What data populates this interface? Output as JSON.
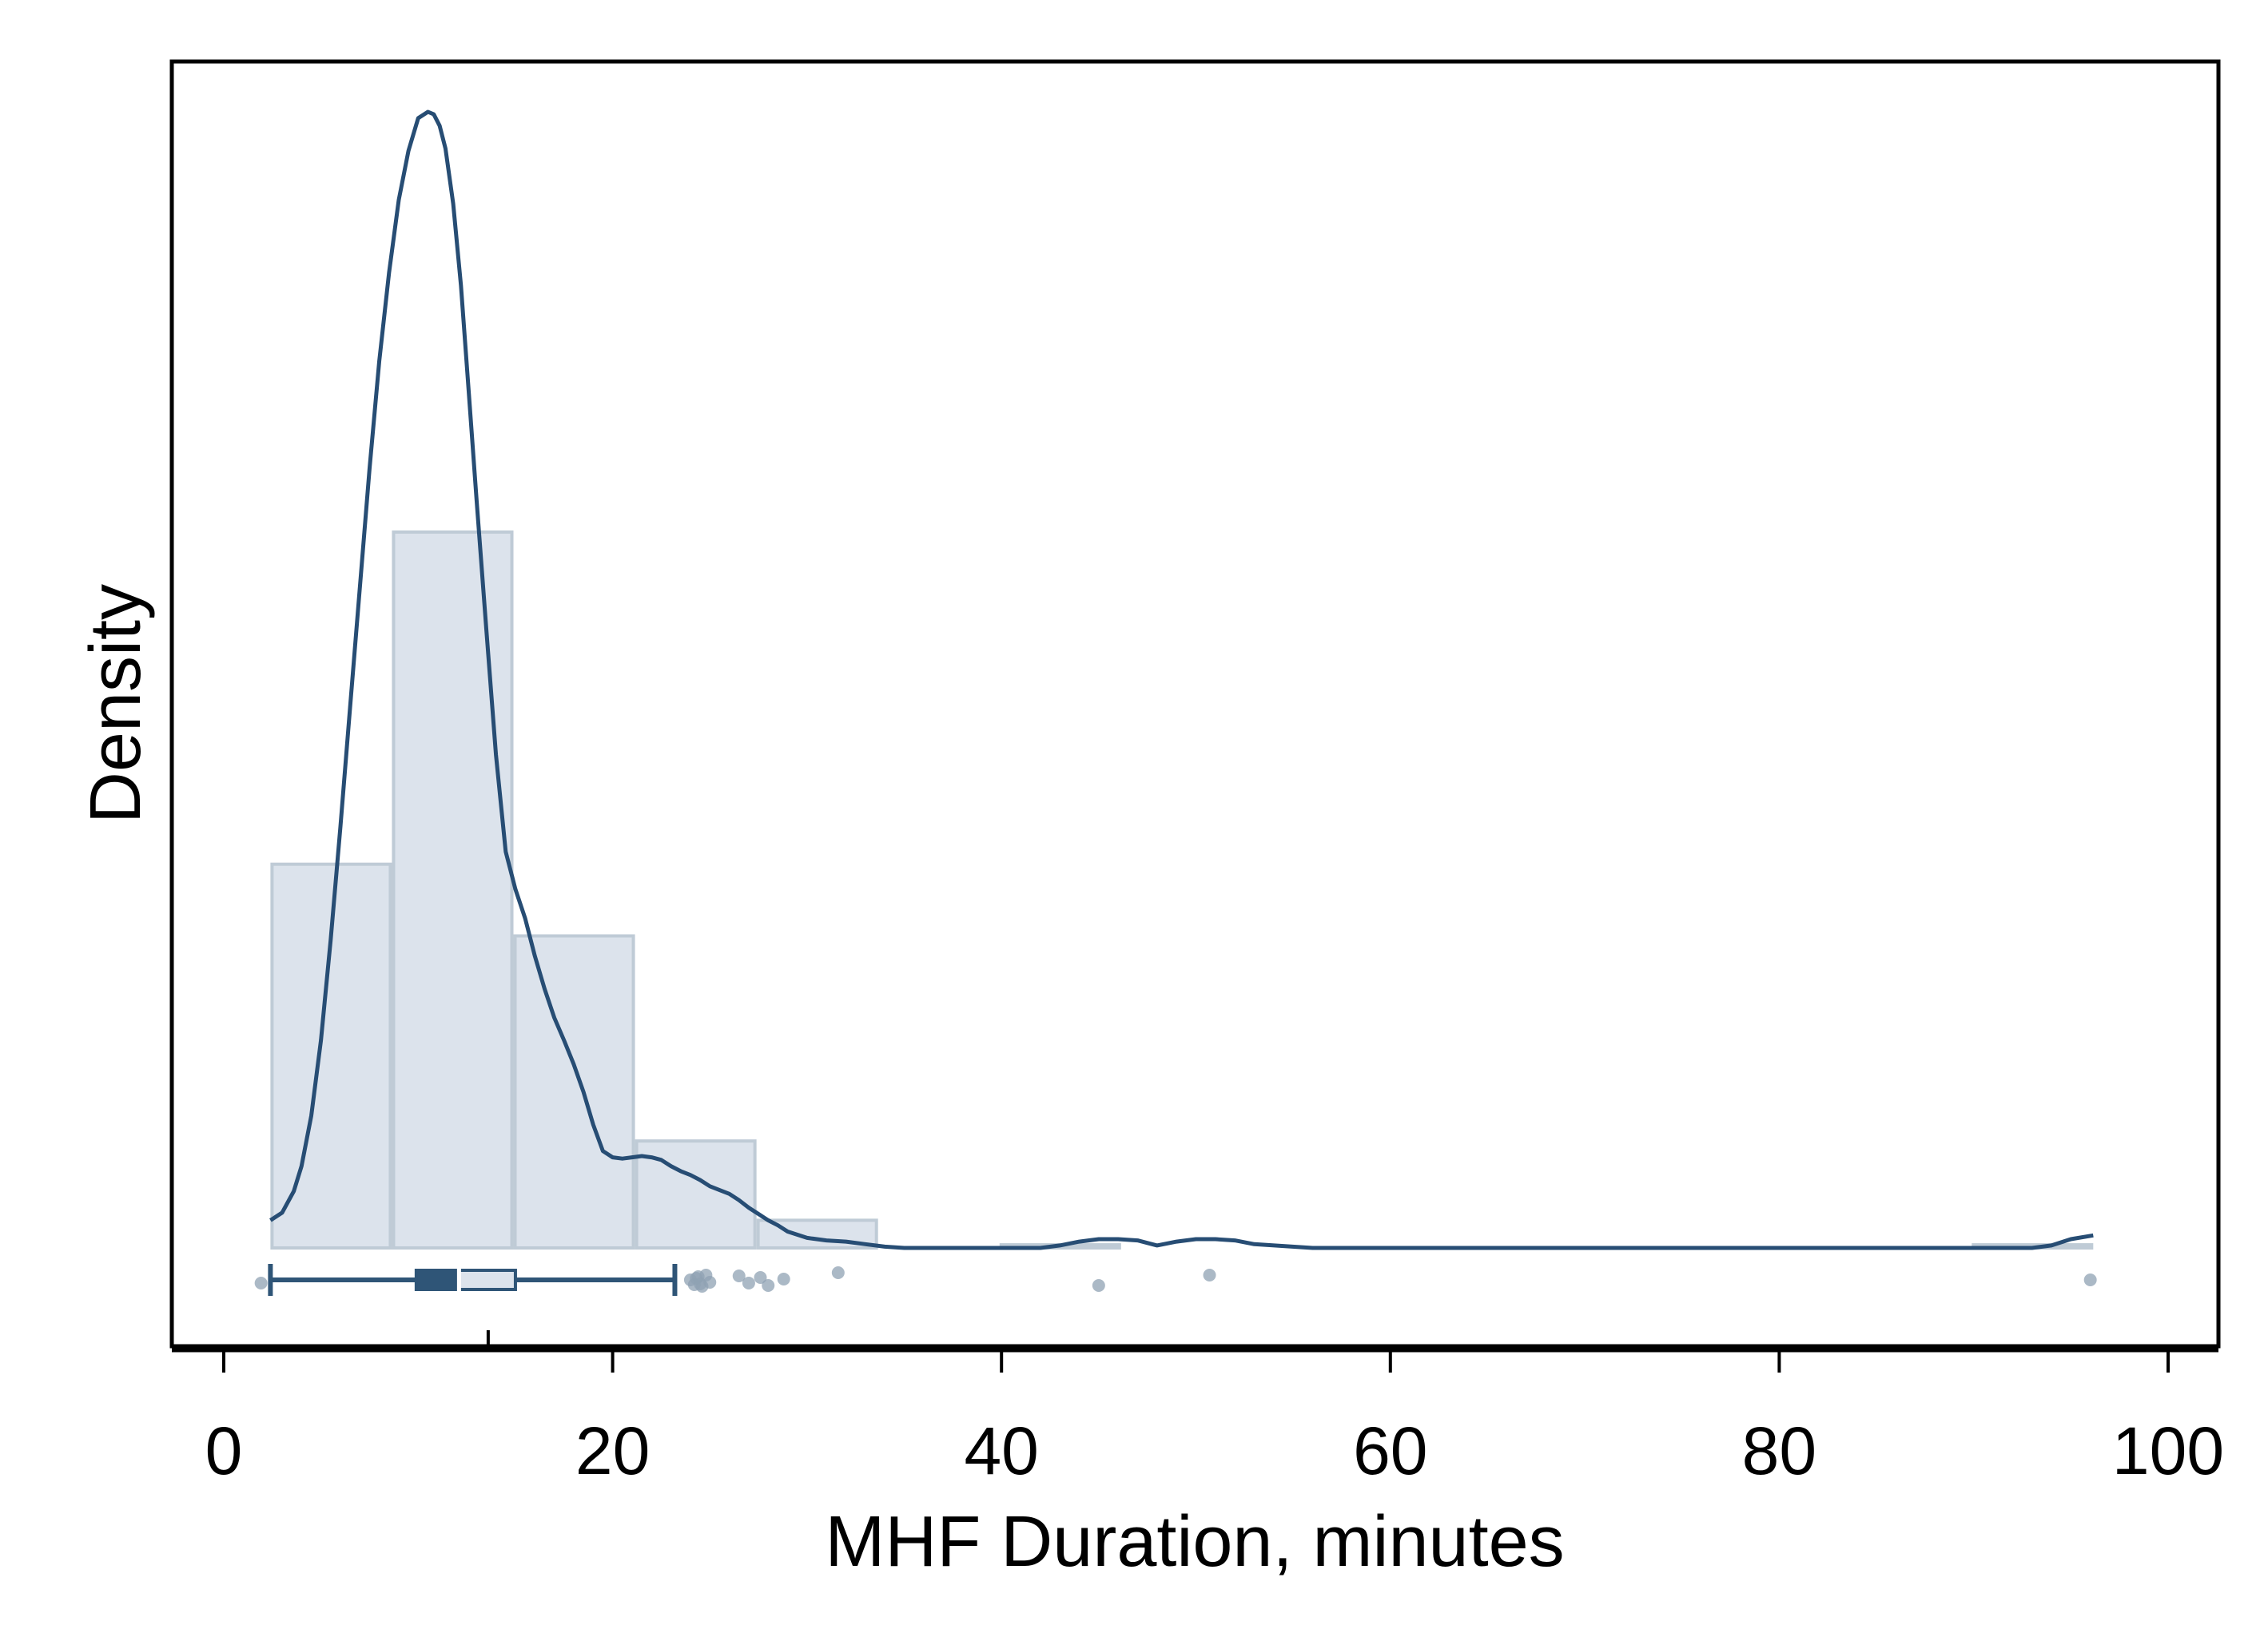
{
  "chart_data": {
    "type": "histogram",
    "title": "",
    "xlabel": "MHF Duration, minutes",
    "ylabel": "Density",
    "xlim": [
      -2.5,
      102.5
    ],
    "xticks": [
      0,
      20,
      40,
      60,
      80,
      100
    ],
    "xtick_labels": [
      "0",
      "20",
      "40",
      "60",
      "80",
      "100"
    ],
    "yticks_shown": false,
    "grid": false,
    "legend": "none",
    "histogram": {
      "bin_edges": [
        2.4,
        8.65,
        14.9,
        21.15,
        27.4,
        33.65,
        39.9,
        46.15,
        52.4,
        58.65,
        64.9,
        71.15,
        77.4,
        83.65,
        89.9,
        96.15
      ],
      "densities": [
        0.0305,
        0.0569,
        0.0248,
        0.0085,
        0.0022,
        0.0,
        0.00025,
        0.0,
        0.0,
        0.0,
        0.0,
        0.0,
        0.0,
        0.0,
        0.00025
      ]
    },
    "kde": {
      "x": [
        2.4,
        3.0,
        3.6,
        4.0,
        4.5,
        5.0,
        5.5,
        6.0,
        6.5,
        7.0,
        7.5,
        8.0,
        8.5,
        9.0,
        9.5,
        10.0,
        10.5,
        10.8,
        11.1,
        11.4,
        11.8,
        12.2,
        12.6,
        13.0,
        13.5,
        14.0,
        14.5,
        15.0,
        15.5,
        16.0,
        16.5,
        17.0,
        17.5,
        18.0,
        18.5,
        19.0,
        19.5,
        20.0,
        20.5,
        21.0,
        21.5,
        22.0,
        22.5,
        23.0,
        23.5,
        24.0,
        24.5,
        25.0,
        25.5,
        26.0,
        26.5,
        27.0,
        27.5,
        28.0,
        28.5,
        29.0,
        30.0,
        31.0,
        32.0,
        33.0,
        34.0,
        35.0,
        38.0,
        42.0,
        43.0,
        44.0,
        45.0,
        46.0,
        47.0,
        48.0,
        49.0,
        50.0,
        51.0,
        52.0,
        53.0,
        56.0,
        70.0,
        85.0,
        93.0,
        94.0,
        95.0,
        96.15
      ],
      "y": [
        0.0022,
        0.0028,
        0.0045,
        0.0065,
        0.0105,
        0.0165,
        0.0245,
        0.0335,
        0.043,
        0.0525,
        0.062,
        0.0705,
        0.0775,
        0.0833,
        0.0872,
        0.0898,
        0.0903,
        0.0901,
        0.0892,
        0.0874,
        0.083,
        0.0765,
        0.068,
        0.0595,
        0.0492,
        0.0392,
        0.0315,
        0.0285,
        0.0262,
        0.0232,
        0.0206,
        0.0183,
        0.0165,
        0.0146,
        0.0124,
        0.0098,
        0.0077,
        0.0072,
        0.0071,
        0.0072,
        0.0073,
        0.0072,
        0.007,
        0.0065,
        0.0061,
        0.0058,
        0.0054,
        0.0049,
        0.0046,
        0.0043,
        0.0038,
        0.0032,
        0.0027,
        0.0022,
        0.0018,
        0.0013,
        0.0008,
        0.0006,
        0.0005,
        0.0003,
        0.0001,
        0.0,
        0.0,
        0.0,
        0.0002,
        0.0005,
        0.0007,
        0.0007,
        0.0006,
        0.0002,
        0.0005,
        0.0007,
        0.0007,
        0.0006,
        0.0003,
        0.0,
        0.0,
        0.0,
        0.0,
        0.0002,
        0.0007,
        0.001
      ]
    },
    "boxplot": {
      "whisker_low": 2.4,
      "q1": 9.9,
      "median": 12.1,
      "q3": 15.0,
      "whisker_high": 23.2,
      "mean": 13.6,
      "outliers": [
        24.0,
        24.2,
        24.4,
        24.6,
        24.8,
        25.0,
        24.3,
        24.5,
        26.5,
        27.0,
        27.6,
        28.0,
        28.8,
        31.6,
        45.0,
        50.7,
        96.0
      ],
      "jittered_points": [
        2.0
      ]
    },
    "colors": {
      "kde_line": "#274d74",
      "hist_fill": "#dce3ec",
      "hist_edge": "#bfcbd6",
      "box_dark": "#2f5577",
      "box_light": "#dce3ec",
      "points": "#8fa1b3"
    }
  }
}
